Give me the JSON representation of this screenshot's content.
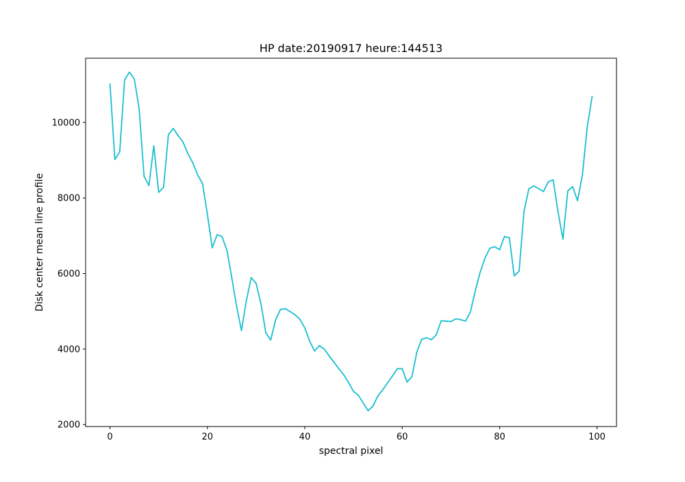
{
  "chart_data": {
    "type": "line",
    "title": "HP date:20190917 heure:144513",
    "xlabel": "spectral pixel",
    "ylabel": "Disk center mean line profile",
    "xlim": [
      -5,
      104
    ],
    "ylim": [
      1950,
      11700
    ],
    "xticks": [
      0,
      20,
      40,
      60,
      80,
      100
    ],
    "yticks": [
      2000,
      4000,
      6000,
      8000,
      10000
    ],
    "grid": false,
    "legend": "none",
    "series": [
      {
        "color": "#17becf",
        "x": [
          0,
          1,
          2,
          3,
          4,
          5,
          6,
          7,
          8,
          9,
          10,
          11,
          12,
          13,
          14,
          15,
          16,
          17,
          18,
          19,
          20,
          21,
          22,
          23,
          24,
          25,
          26,
          27,
          28,
          29,
          30,
          31,
          32,
          33,
          34,
          35,
          36,
          37,
          38,
          39,
          40,
          41,
          42,
          43,
          44,
          45,
          46,
          47,
          48,
          49,
          50,
          51,
          52,
          53,
          54,
          55,
          56,
          57,
          58,
          59,
          60,
          61,
          62,
          63,
          64,
          65,
          66,
          67,
          68,
          69,
          70,
          71,
          72,
          73,
          74,
          75,
          76,
          77,
          78,
          79,
          80,
          81,
          82,
          83,
          84,
          85,
          86,
          87,
          88,
          89,
          90,
          91,
          92,
          93,
          94,
          95,
          96,
          97,
          98,
          99
        ],
        "y": [
          11020,
          9020,
          9220,
          11130,
          11330,
          11150,
          10350,
          8570,
          8330,
          9380,
          8150,
          8280,
          9680,
          9840,
          9650,
          9480,
          9170,
          8930,
          8610,
          8380,
          7570,
          6680,
          7030,
          6980,
          6620,
          5900,
          5130,
          4490,
          5280,
          5890,
          5740,
          5200,
          4430,
          4240,
          4770,
          5050,
          5070,
          4990,
          4910,
          4790,
          4560,
          4210,
          3950,
          4090,
          4000,
          3820,
          3650,
          3480,
          3320,
          3110,
          2880,
          2780,
          2570,
          2370,
          2490,
          2760,
          2920,
          3110,
          3290,
          3480,
          3480,
          3130,
          3270,
          3920,
          4260,
          4300,
          4250,
          4380,
          4750,
          4740,
          4730,
          4800,
          4780,
          4740,
          4980,
          5540,
          6030,
          6410,
          6670,
          6710,
          6630,
          6980,
          6950,
          5940,
          6060,
          7640,
          8240,
          8320,
          8250,
          8170,
          8430,
          8480,
          7630,
          6910,
          8190,
          8300,
          7930,
          8610,
          9890,
          10690
        ]
      }
    ]
  }
}
